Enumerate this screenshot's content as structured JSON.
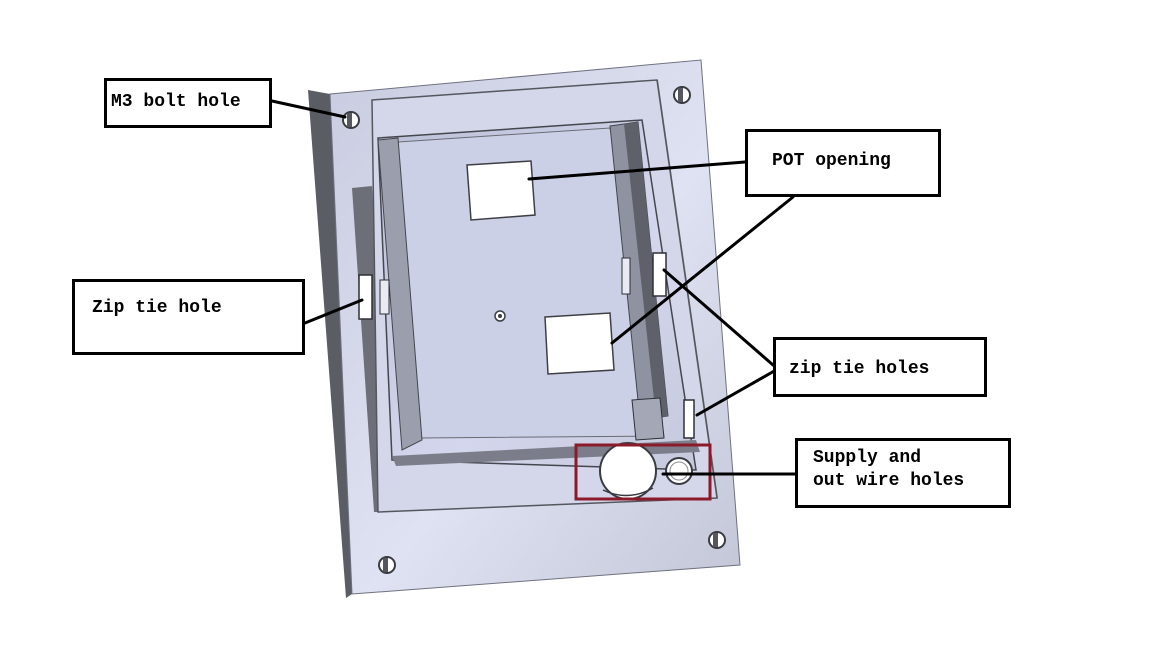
{
  "labels": {
    "m3_bolt_hole": "M3 bolt hole",
    "pot_opening": "POT opening",
    "zip_tie_hole": "Zip tie hole",
    "zip_tie_holes": "zip tie holes",
    "supply_wire_holes": "Supply and\nout wire holes"
  },
  "colors": {
    "plate_face": "#dcdff0",
    "plate_edge": "#5f6168",
    "highlight_box": "#8b1a2a",
    "leader_line": "#000000"
  }
}
